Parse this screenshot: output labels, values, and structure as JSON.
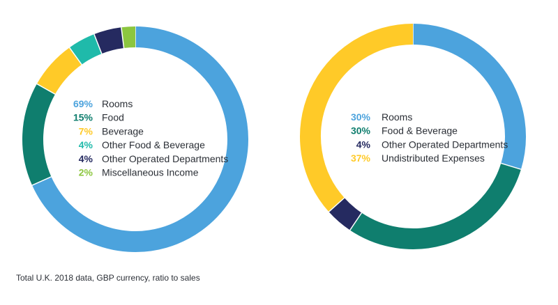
{
  "chart_data": [
    {
      "type": "pie",
      "donut": true,
      "series": [
        {
          "name": "Rooms",
          "value": 69,
          "label": "69%",
          "color": "#4ca3dd"
        },
        {
          "name": "Food",
          "value": 15,
          "label": "15%",
          "color": "#0f7e6e"
        },
        {
          "name": "Beverage",
          "value": 7,
          "label": "7%",
          "color": "#ffca28"
        },
        {
          "name": "Other Food & Beverage",
          "value": 4,
          "label": "4%",
          "color": "#1fbaaa"
        },
        {
          "name": "Other Operated Departments",
          "value": 4,
          "label": "4%",
          "color": "#252a60"
        },
        {
          "name": "Miscellaneous Income",
          "value": 2,
          "label": "2%",
          "color": "#8cc63f"
        }
      ]
    },
    {
      "type": "pie",
      "donut": true,
      "series": [
        {
          "name": "Rooms",
          "value": 30,
          "label": "30%",
          "color": "#4ca3dd"
        },
        {
          "name": "Food & Beverage",
          "value": 30,
          "label": "30%",
          "color": "#0f7e6e"
        },
        {
          "name": "Other Operated Departments",
          "value": 4,
          "label": "4%",
          "color": "#252a60"
        },
        {
          "name": "Undistributed Expenses",
          "value": 37,
          "label": "37%",
          "color": "#ffca28"
        }
      ]
    }
  ],
  "footnote": "Total U.K. 2018 data, GBP currency, ratio to sales"
}
